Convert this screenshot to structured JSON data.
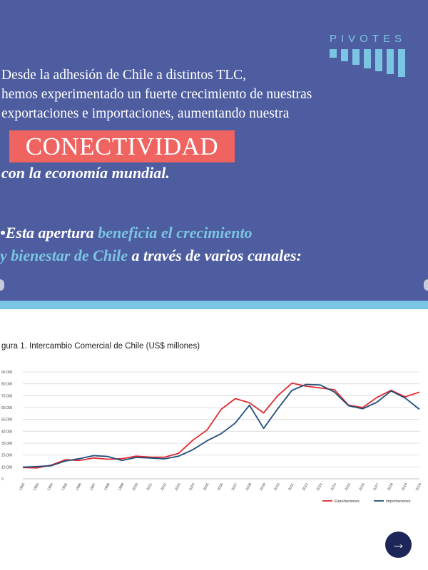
{
  "brand": {
    "logo_text": "PIVOTES",
    "icon": "pivotes-bars-logo-icon"
  },
  "colors": {
    "hero_bg": "#4e5d9f",
    "accent": "#7bc5e4",
    "highlight_box": "#ef6461",
    "exports_line": "#e02a2f",
    "imports_line": "#1f4e79",
    "button": "#1c2659"
  },
  "intro": {
    "line1": "Desde la adhesión de Chile a distintos TLC,",
    "line2": "hemos experimentado un fuerte crecimiento de nuestras",
    "line3": "exportaciones e importaciones, aumentando nuestra",
    "keyword": "CONECTIVIDAD",
    "line4": "con la economía mundial."
  },
  "apertura": {
    "bullet": "•",
    "part1": "Esta apertura ",
    "part2": "beneficia el crecimiento",
    "part3": "y bienestar de Chile",
    "part4": " a través de varios canales:"
  },
  "nav": {
    "next_icon": "arrow-right-icon",
    "next_symbol": "→"
  },
  "chart_data": {
    "type": "line",
    "title": "gura 1. Intercambio Comercial de Chile (US$ millones)",
    "categories": [
      "1992",
      "1993",
      "1994",
      "1995",
      "1996",
      "1997",
      "1998",
      "1999",
      "2000",
      "2001",
      "2002",
      "2003",
      "2004",
      "2005",
      "2006",
      "2007",
      "2008",
      "2009",
      "2010",
      "2011",
      "2012",
      "2013",
      "2014",
      "2015",
      "2016",
      "2017",
      "2018",
      "2019",
      "2020"
    ],
    "series": [
      {
        "name": "Exportaciones",
        "color": "#e02a2f",
        "values": [
          9500,
          9200,
          11500,
          16000,
          15500,
          17500,
          16500,
          17000,
          19000,
          18300,
          18200,
          21500,
          32500,
          41000,
          58500,
          67500,
          64000,
          55500,
          70000,
          80500,
          78000,
          76500,
          75000,
          62000,
          60000,
          68500,
          74500,
          69000,
          73000
        ]
      },
      {
        "name": "Importaciones",
        "color": "#1f4e79",
        "values": [
          9800,
          10300,
          11000,
          15000,
          17000,
          19500,
          18800,
          15500,
          18000,
          17500,
          16800,
          19000,
          24500,
          32000,
          38000,
          47000,
          62000,
          42500,
          59000,
          74500,
          79500,
          79000,
          73000,
          61500,
          59000,
          64500,
          74000,
          68000,
          58500
        ]
      }
    ],
    "yticks": [
      "0",
      "10.000",
      "20.000",
      "30.000",
      "40.000",
      "50.000",
      "60.000",
      "70.000",
      "80.000",
      "90.000"
    ],
    "ylim": [
      0,
      90000
    ],
    "grid": true,
    "legend_position": "bottom-right",
    "legend": [
      "Exportaciones",
      "Importaciones"
    ]
  }
}
